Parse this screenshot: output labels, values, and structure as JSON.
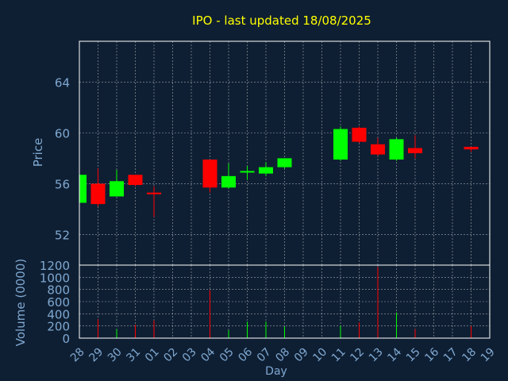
{
  "colors": {
    "background": "#0f1f33",
    "title": "#ffff00",
    "axis_text": "#7fa8d1",
    "frame": "#ffffff",
    "grid": "#ffffff",
    "up": "#00ff00",
    "down": "#ff0000"
  },
  "chart_data": {
    "type": "candlestick",
    "title": "IPO - last updated 18/08/2025",
    "xlabel": "Day",
    "price_panel": {
      "ylabel": "Price",
      "yticks": [
        52,
        56,
        60,
        64
      ],
      "ylim": [
        49.6,
        67.2
      ],
      "grid": true
    },
    "volume_panel": {
      "ylabel": "Volume (0000)",
      "yticks": [
        0,
        200,
        400,
        600,
        800,
        1000,
        1200
      ],
      "ylim": [
        0,
        1200
      ],
      "grid": true
    },
    "x_tick_labels": [
      "28",
      "29",
      "30",
      "31",
      "01",
      "02",
      "03",
      "04",
      "05",
      "06",
      "07",
      "08",
      "09",
      "10",
      "11",
      "12",
      "13",
      "14",
      "15",
      "16",
      "17",
      "18",
      "19"
    ],
    "candles": [
      {
        "day": "28",
        "open": 54.5,
        "close": 56.7,
        "high": 56.7,
        "low": 54.5,
        "volume": 0
      },
      {
        "day": "29",
        "open": 56.0,
        "close": 54.4,
        "high": 57.2,
        "low": 54.2,
        "volume": 310
      },
      {
        "day": "30",
        "open": 55.0,
        "close": 56.2,
        "high": 57.1,
        "low": 55.0,
        "volume": 150
      },
      {
        "day": "31",
        "open": 56.7,
        "close": 55.9,
        "high": 56.7,
        "low": 55.8,
        "volume": 220
      },
      {
        "day": "01",
        "open": 55.3,
        "close": 55.2,
        "high": 55.8,
        "low": 53.4,
        "volume": 290
      },
      {
        "day": "04",
        "open": 57.9,
        "close": 55.7,
        "high": 57.9,
        "low": 55.3,
        "volume": 790
      },
      {
        "day": "05",
        "open": 55.7,
        "close": 56.6,
        "high": 57.6,
        "low": 55.6,
        "volume": 130
      },
      {
        "day": "06",
        "open": 56.9,
        "close": 57.0,
        "high": 57.4,
        "low": 56.3,
        "volume": 270
      },
      {
        "day": "07",
        "open": 56.8,
        "close": 57.3,
        "high": 57.7,
        "low": 56.6,
        "volume": 270
      },
      {
        "day": "08",
        "open": 57.3,
        "close": 58.0,
        "high": 58.0,
        "low": 57.2,
        "volume": 190
      },
      {
        "day": "11",
        "open": 57.9,
        "close": 60.3,
        "high": 60.5,
        "low": 57.8,
        "volume": 200
      },
      {
        "day": "12",
        "open": 60.4,
        "close": 59.3,
        "high": 60.5,
        "low": 59.2,
        "volume": 260
      },
      {
        "day": "13",
        "open": 59.1,
        "close": 58.3,
        "high": 59.6,
        "low": 58.2,
        "volume": 1170
      },
      {
        "day": "14",
        "open": 57.9,
        "close": 59.5,
        "high": 59.6,
        "low": 57.8,
        "volume": 420
      },
      {
        "day": "15",
        "open": 58.8,
        "close": 58.4,
        "high": 59.8,
        "low": 58.0,
        "volume": 150
      },
      {
        "day": "18",
        "open": 58.9,
        "close": 58.7,
        "high": 58.9,
        "low": 58.5,
        "volume": 200
      }
    ]
  }
}
